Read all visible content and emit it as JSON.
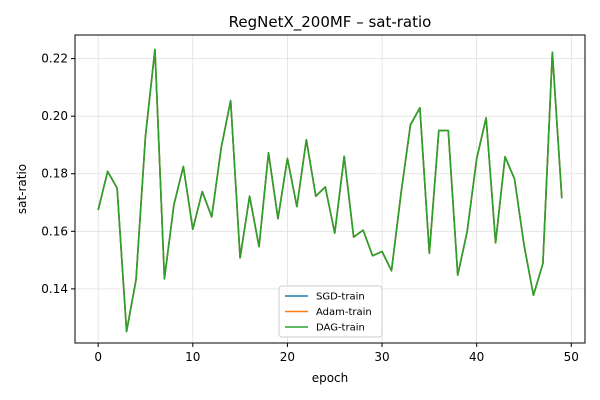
{
  "chart_data": {
    "type": "line",
    "title": "RegNetX_200MF – sat-ratio",
    "xlabel": "epoch",
    "ylabel": "sat-ratio",
    "xlim": [
      -2.45,
      51.45
    ],
    "ylim": [
      0.1212,
      0.2282
    ],
    "xticks": [
      0,
      10,
      20,
      30,
      40,
      50
    ],
    "yticks": [
      0.14,
      0.16,
      0.18,
      0.2,
      0.22
    ],
    "ytick_labels": [
      "0.14",
      "0.16",
      "0.18",
      "0.20",
      "0.22"
    ],
    "grid": true,
    "legend_placement": "lower-center",
    "x": [
      0,
      1,
      2,
      3,
      4,
      5,
      6,
      7,
      8,
      9,
      10,
      11,
      12,
      13,
      14,
      15,
      16,
      17,
      18,
      19,
      20,
      21,
      22,
      23,
      24,
      25,
      26,
      27,
      28,
      29,
      30,
      31,
      32,
      33,
      34,
      35,
      36,
      37,
      38,
      39,
      40,
      41,
      42,
      43,
      44,
      45,
      46,
      47,
      48,
      49
    ],
    "series": [
      {
        "name": "SGD-train",
        "color": "#1f77b4",
        "values": [
          0.1674,
          0.1808,
          0.175,
          0.1252,
          0.1432,
          0.1932,
          0.2232,
          0.1435,
          0.1692,
          0.1825,
          0.1607,
          0.1738,
          0.165,
          0.189,
          0.2054,
          0.1508,
          0.1722,
          0.1547,
          0.1873,
          0.1644,
          0.1853,
          0.1686,
          0.1918,
          0.1722,
          0.1754,
          0.1594,
          0.186,
          0.158,
          0.1604,
          0.1515,
          0.153,
          0.1463,
          0.173,
          0.197,
          0.2029,
          0.1524,
          0.195,
          0.195,
          0.1448,
          0.16,
          0.1852,
          0.1994,
          0.156,
          0.1859,
          0.1782,
          0.1554,
          0.1378,
          0.1488,
          0.2222,
          0.1715
        ]
      },
      {
        "name": "Adam-train",
        "color": "#ff7f0e",
        "values": [
          0.1674,
          0.1808,
          0.175,
          0.1252,
          0.1432,
          0.1932,
          0.2232,
          0.1435,
          0.1692,
          0.1825,
          0.1607,
          0.1738,
          0.165,
          0.189,
          0.2054,
          0.1508,
          0.1722,
          0.1547,
          0.1873,
          0.1644,
          0.1853,
          0.1686,
          0.1918,
          0.1722,
          0.1754,
          0.1594,
          0.186,
          0.158,
          0.1604,
          0.1515,
          0.153,
          0.1463,
          0.173,
          0.197,
          0.2029,
          0.1524,
          0.195,
          0.195,
          0.1448,
          0.16,
          0.1852,
          0.1994,
          0.156,
          0.1859,
          0.1782,
          0.1554,
          0.1378,
          0.1488,
          0.2222,
          0.1715
        ]
      },
      {
        "name": "DAG-train",
        "color": "#2ca02c",
        "values": [
          0.1674,
          0.1808,
          0.175,
          0.1252,
          0.1432,
          0.1932,
          0.2232,
          0.1435,
          0.1692,
          0.1825,
          0.1607,
          0.1738,
          0.165,
          0.189,
          0.2054,
          0.1508,
          0.1722,
          0.1547,
          0.1873,
          0.1644,
          0.1853,
          0.1686,
          0.1918,
          0.1722,
          0.1754,
          0.1594,
          0.186,
          0.158,
          0.1604,
          0.1515,
          0.153,
          0.1463,
          0.173,
          0.197,
          0.2029,
          0.1524,
          0.195,
          0.195,
          0.1448,
          0.16,
          0.1852,
          0.1994,
          0.156,
          0.1859,
          0.1782,
          0.1554,
          0.1378,
          0.1488,
          0.2222,
          0.1715
        ]
      }
    ]
  }
}
